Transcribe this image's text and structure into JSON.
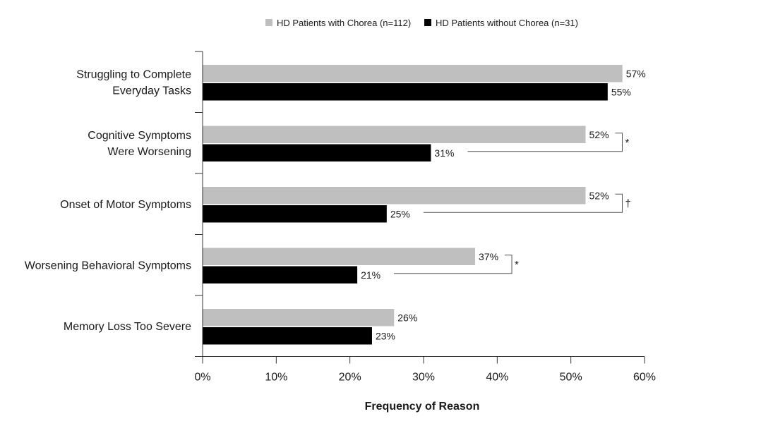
{
  "chart_data": {
    "type": "bar",
    "orientation": "horizontal",
    "categories": [
      [
        "Struggling to Complete",
        "Everyday Tasks"
      ],
      [
        "Cognitive Symptoms",
        "Were Worsening"
      ],
      [
        "Onset of Motor Symptoms"
      ],
      [
        "Worsening Behavioral Symptoms"
      ],
      [
        "Memory Loss Too Severe"
      ]
    ],
    "series": [
      {
        "name": "HD Patients with Chorea (n=112)",
        "color": "#bfbfbf",
        "values": [
          57,
          52,
          52,
          37,
          26
        ],
        "labels": [
          "57%",
          "52%",
          "52%",
          "37%",
          "26%"
        ]
      },
      {
        "name": "HD Patients without Chorea (n=31)",
        "color": "#000000",
        "values": [
          55,
          31,
          25,
          21,
          23
        ],
        "labels": [
          "55%",
          "31%",
          "25%",
          "21%",
          "23%"
        ]
      }
    ],
    "xlabel": "Frequency of Reason",
    "xlim": [
      0,
      60
    ],
    "xticks": [
      0,
      10,
      20,
      30,
      40,
      50,
      60
    ],
    "xtick_labels": [
      "0%",
      "10%",
      "20%",
      "30%",
      "40%",
      "50%",
      "60%"
    ],
    "significance": [
      {
        "category_index": 1,
        "marker": "*"
      },
      {
        "category_index": 2,
        "marker": "†"
      },
      {
        "category_index": 3,
        "marker": "*"
      }
    ],
    "legend_position": "top-center",
    "grid": false
  }
}
